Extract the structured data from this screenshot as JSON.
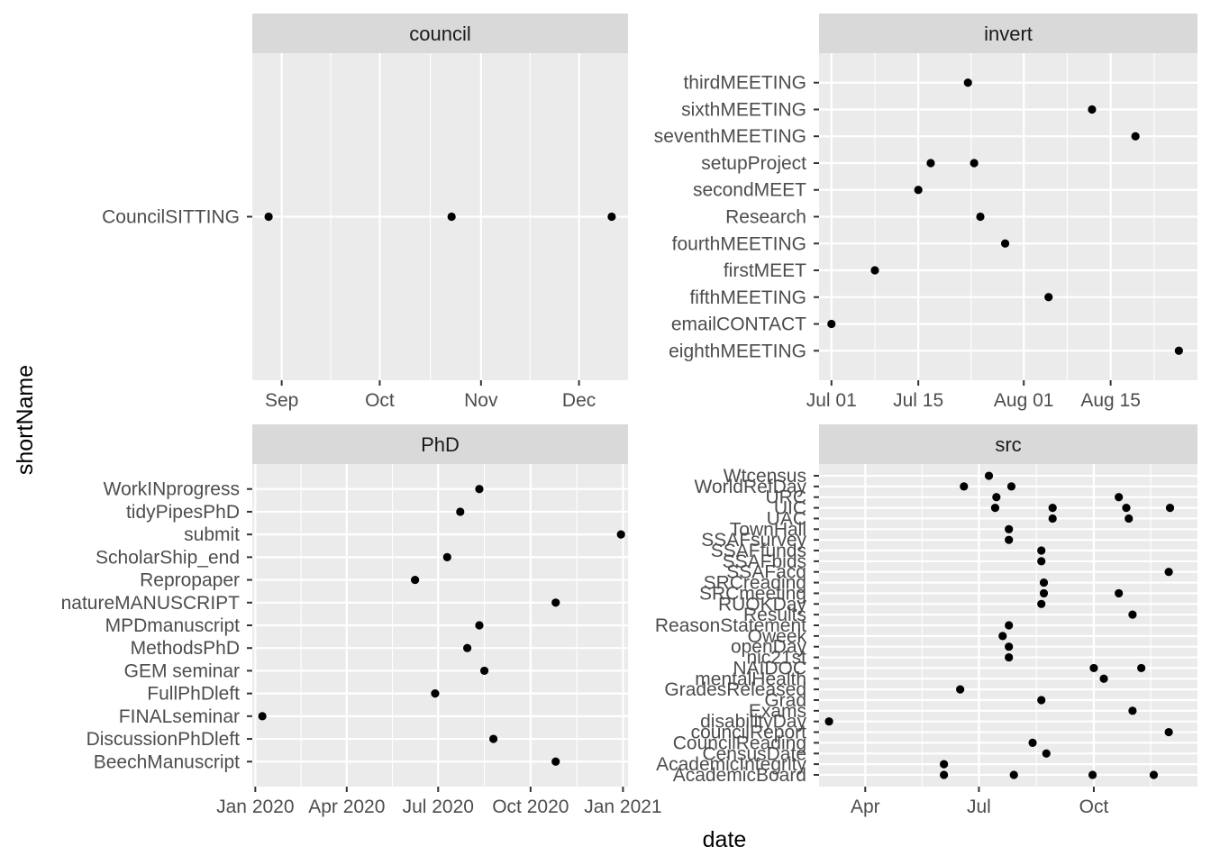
{
  "axis_titles": {
    "x": "date",
    "y": "shortName"
  },
  "chart_data": [
    {
      "type": "scatter",
      "facet": "council",
      "x_breaks": [
        "2020-09-01",
        "2020-10-01",
        "2020-11-01",
        "2020-12-01"
      ],
      "x_break_labels": [
        "Sep",
        "Oct",
        "Nov",
        "Dec"
      ],
      "xlim": [
        "2020-08-23",
        "2020-12-16"
      ],
      "categories": [
        "CouncilSITTING"
      ],
      "points": [
        {
          "y": "CouncilSITTING",
          "x": "2020-08-28"
        },
        {
          "y": "CouncilSITTING",
          "x": "2020-10-23"
        },
        {
          "y": "CouncilSITTING",
          "x": "2020-12-11"
        }
      ]
    },
    {
      "type": "scatter",
      "facet": "invert",
      "x_breaks": [
        "2020-07-01",
        "2020-07-15",
        "2020-08-01",
        "2020-08-15"
      ],
      "x_break_labels": [
        "Jul 01",
        "Jul 15",
        "Aug 01",
        "Aug 15"
      ],
      "xlim": [
        "2020-06-29",
        "2020-08-29"
      ],
      "categories": [
        "eighthMEETING",
        "emailCONTACT",
        "fifthMEETING",
        "firstMEET",
        "fourthMEETING",
        "Research",
        "secondMEET",
        "setupProject",
        "seventhMEETING",
        "sixthMEETING",
        "thirdMEETING"
      ],
      "points": [
        {
          "y": "thirdMEETING",
          "x": "2020-07-23"
        },
        {
          "y": "sixthMEETING",
          "x": "2020-08-12"
        },
        {
          "y": "seventhMEETING",
          "x": "2020-08-19"
        },
        {
          "y": "setupProject",
          "x": "2020-07-17"
        },
        {
          "y": "setupProject",
          "x": "2020-07-24"
        },
        {
          "y": "secondMEET",
          "x": "2020-07-15"
        },
        {
          "y": "Research",
          "x": "2020-07-25"
        },
        {
          "y": "fourthMEETING",
          "x": "2020-07-29"
        },
        {
          "y": "firstMEET",
          "x": "2020-07-08"
        },
        {
          "y": "fifthMEETING",
          "x": "2020-08-05"
        },
        {
          "y": "emailCONTACT",
          "x": "2020-07-01"
        },
        {
          "y": "eighthMEETING",
          "x": "2020-08-26"
        }
      ]
    },
    {
      "type": "scatter",
      "facet": "PhD",
      "x_breaks": [
        "2020-01-01",
        "2020-04-01",
        "2020-07-01",
        "2020-10-01",
        "2021-01-01"
      ],
      "x_break_labels": [
        "Jan 2020",
        "Apr 2020",
        "Jul 2020",
        "Oct 2020",
        "Jan 2021"
      ],
      "xlim": [
        "2019-12-29",
        "2021-01-06"
      ],
      "categories": [
        "BeechManuscript",
        "DiscussionPhDleft",
        "FINALseminar",
        "FullPhDleft",
        "GEM seminar",
        "MethodsPhD",
        "MPDmanuscript",
        "natureMANUSCRIPT",
        "Repropaper",
        "ScholarShip_end",
        "submit",
        "tidyPipesPhD",
        "WorkINprogress"
      ],
      "points": [
        {
          "y": "WorkINprogress",
          "x": "2020-08-11"
        },
        {
          "y": "tidyPipesPhD",
          "x": "2020-07-23"
        },
        {
          "y": "submit",
          "x": "2020-12-30"
        },
        {
          "y": "ScholarShip_end",
          "x": "2020-07-10"
        },
        {
          "y": "Repropaper",
          "x": "2020-06-08"
        },
        {
          "y": "natureMANUSCRIPT",
          "x": "2020-10-26"
        },
        {
          "y": "MPDmanuscript",
          "x": "2020-08-11"
        },
        {
          "y": "MethodsPhD",
          "x": "2020-07-30"
        },
        {
          "y": "GEM seminar",
          "x": "2020-08-16"
        },
        {
          "y": "FullPhDleft",
          "x": "2020-06-28"
        },
        {
          "y": "FINALseminar",
          "x": "2020-01-08"
        },
        {
          "y": "DiscussionPhDleft",
          "x": "2020-08-25"
        },
        {
          "y": "BeechManuscript",
          "x": "2020-10-26"
        }
      ]
    },
    {
      "type": "scatter",
      "facet": "src",
      "x_breaks": [
        "2020-04-01",
        "2020-07-01",
        "2020-10-01"
      ],
      "x_break_labels": [
        "Apr",
        "Jul",
        "Oct"
      ],
      "xlim": [
        "2020-02-24",
        "2020-12-23"
      ],
      "categories": [
        "AcademicBoard",
        "AcademicIntegrity",
        "CensusDate",
        "CouncilReading",
        "councilReport",
        "disabilityDay",
        "Exams",
        "Grad",
        "GradesReleased",
        "mentalHealth",
        "NAIDOC",
        "nic21st",
        "openDay",
        "Oweek",
        "ReasonStatement",
        "Results",
        "RUOKDay",
        "SRCmeeting",
        "SRCreading",
        "SSAFacq",
        "SSAFbids",
        "SSAFfunds",
        "SSAFsurvey",
        "TownHall",
        "UAC",
        "UIC",
        "URC",
        "WorldRefDay",
        "Wtcensus"
      ],
      "points": [
        {
          "y": "Wtcensus",
          "x": "2020-07-09"
        },
        {
          "y": "WorldRefDay",
          "x": "2020-06-19"
        },
        {
          "y": "WorldRefDay",
          "x": "2020-07-27"
        },
        {
          "y": "URC",
          "x": "2020-07-15"
        },
        {
          "y": "URC",
          "x": "2020-10-21"
        },
        {
          "y": "UIC",
          "x": "2020-07-14"
        },
        {
          "y": "UIC",
          "x": "2020-08-29"
        },
        {
          "y": "UIC",
          "x": "2020-10-27"
        },
        {
          "y": "UIC",
          "x": "2020-12-01"
        },
        {
          "y": "UAC",
          "x": "2020-08-29"
        },
        {
          "y": "UAC",
          "x": "2020-10-29"
        },
        {
          "y": "TownHall",
          "x": "2020-07-25"
        },
        {
          "y": "SSAFsurvey",
          "x": "2020-07-25"
        },
        {
          "y": "SSAFfunds",
          "x": "2020-08-20"
        },
        {
          "y": "SSAFbids",
          "x": "2020-08-20"
        },
        {
          "y": "SSAFacq",
          "x": "2020-11-30"
        },
        {
          "y": "SRCreading",
          "x": "2020-08-22"
        },
        {
          "y": "SRCmeeting",
          "x": "2020-08-22"
        },
        {
          "y": "SRCmeeting",
          "x": "2020-10-21"
        },
        {
          "y": "RUOKDay",
          "x": "2020-08-20"
        },
        {
          "y": "Results",
          "x": "2020-11-01"
        },
        {
          "y": "ReasonStatement",
          "x": "2020-07-25"
        },
        {
          "y": "Oweek",
          "x": "2020-07-20"
        },
        {
          "y": "openDay",
          "x": "2020-07-25"
        },
        {
          "y": "nic21st",
          "x": "2020-07-25"
        },
        {
          "y": "NAIDOC",
          "x": "2020-10-01"
        },
        {
          "y": "NAIDOC",
          "x": "2020-11-08"
        },
        {
          "y": "mentalHealth",
          "x": "2020-10-09"
        },
        {
          "y": "GradesReleased",
          "x": "2020-06-16"
        },
        {
          "y": "Grad",
          "x": "2020-08-20"
        },
        {
          "y": "Exams",
          "x": "2020-11-01"
        },
        {
          "y": "disabilityDay",
          "x": "2020-03-03"
        },
        {
          "y": "councilReport",
          "x": "2020-11-30"
        },
        {
          "y": "CouncilReading",
          "x": "2020-08-13"
        },
        {
          "y": "CensusDate",
          "x": "2020-08-24"
        },
        {
          "y": "AcademicIntegrity",
          "x": "2020-06-03"
        },
        {
          "y": "AcademicBoard",
          "x": "2020-06-03"
        },
        {
          "y": "AcademicBoard",
          "x": "2020-07-29"
        },
        {
          "y": "AcademicBoard",
          "x": "2020-09-30"
        },
        {
          "y": "AcademicBoard",
          "x": "2020-11-18"
        }
      ]
    }
  ]
}
